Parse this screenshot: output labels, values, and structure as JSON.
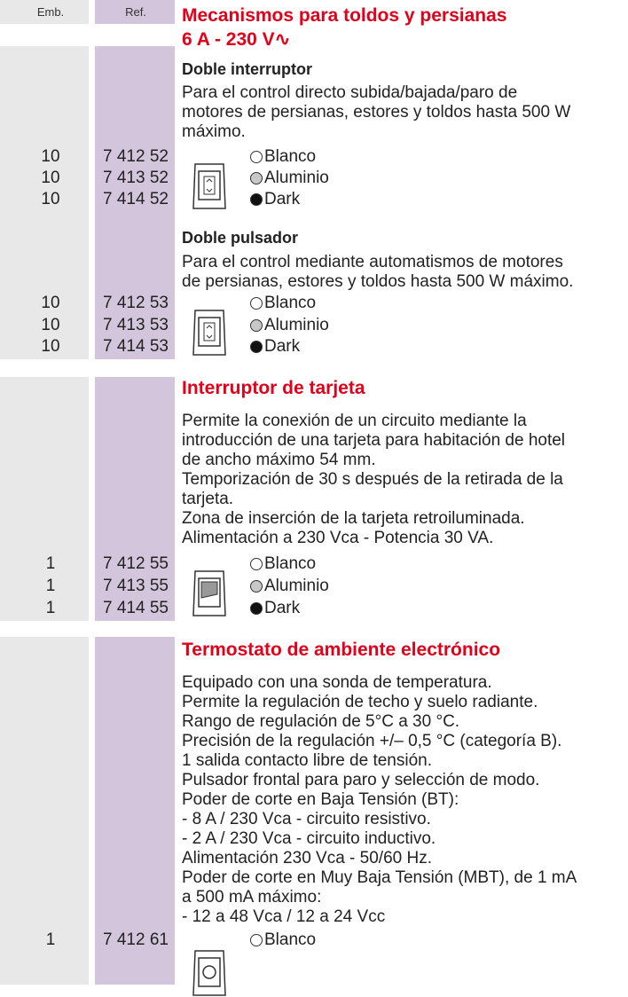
{
  "header": {
    "emb": "Emb.",
    "ref": "Ref."
  },
  "sections": [
    {
      "title": [
        "Mecanismos para toldos y persianas",
        "6 A - 230 V∿"
      ],
      "products": [
        {
          "name": "Doble interruptor",
          "description": [
            "Para el control directo subida/bajada/paro de",
            "motores de persianas, estores y toldos hasta 500 W",
            "máximo."
          ],
          "items": [
            {
              "emb": "10",
              "ref": "7 412 52",
              "finish": "Blanco"
            },
            {
              "emb": "10",
              "ref": "7 413 52",
              "finish": "Aluminio"
            },
            {
              "emb": "10",
              "ref": "7 414 52",
              "finish": "Dark"
            }
          ]
        },
        {
          "name": "Doble pulsador",
          "description": [
            "Para el control mediante automatismos de motores",
            "de persianas, estores y toldos hasta 500 W máximo."
          ],
          "items": [
            {
              "emb": "10",
              "ref": "7 412 53",
              "finish": "Blanco"
            },
            {
              "emb": "10",
              "ref": "7 413 53",
              "finish": "Aluminio"
            },
            {
              "emb": "10",
              "ref": "7 414 53",
              "finish": "Dark"
            }
          ]
        }
      ]
    },
    {
      "title": [
        "Interruptor de tarjeta"
      ],
      "products": [
        {
          "description": [
            "Permite la conexión de un circuito mediante la",
            "introducción de una tarjeta para habitación de hotel",
            "de ancho máximo 54 mm.",
            "Temporización de 30 s después de la retirada de la",
            "tarjeta.",
            "Zona de inserción de la tarjeta retroiluminada.",
            "Alimentación a 230 Vca - Potencia 30 VA."
          ],
          "items": [
            {
              "emb": "1",
              "ref": "7 412 55",
              "finish": "Blanco"
            },
            {
              "emb": "1",
              "ref": "7 413 55",
              "finish": "Aluminio"
            },
            {
              "emb": "1",
              "ref": "7 414 55",
              "finish": "Dark"
            }
          ]
        }
      ]
    },
    {
      "title": [
        "Termostato de ambiente electrónico"
      ],
      "products": [
        {
          "description": [
            "Equipado con una sonda de temperatura.",
            "Permite la regulación de techo y suelo radiante.",
            "Rango de regulación de 5°C a 30 °C.",
            "Precisión de la regulación +/– 0,5 °C (categoría B).",
            "1 salida contacto libre de tensión.",
            "Pulsador frontal para paro y selección de modo.",
            "Poder de corte en Baja Tensión (BT):",
            "- 8 A / 230 Vca - circuito resistivo.",
            "- 2 A / 230 Vca - circuito inductivo.",
            "Alimentación 230 Vca - 50/60 Hz.",
            "Poder de corte en Muy Baja Tensión (MBT), de 1 mA",
            "a 500 mA máximo:",
            "- 12 a 48 Vca / 12 a 24 Vcc"
          ],
          "items": [
            {
              "emb": "1",
              "ref": "7 412 61",
              "finish": "Blanco"
            }
          ]
        }
      ]
    }
  ]
}
